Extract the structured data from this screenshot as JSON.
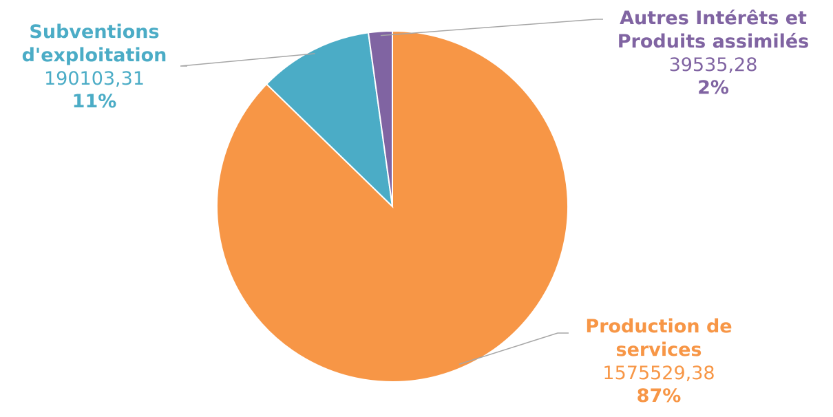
{
  "chart_data": {
    "type": "pie",
    "title": "",
    "slices": [
      {
        "label": "Production de services",
        "value_label": "1575529,38",
        "value": 1575529.38,
        "percent_label": "87%",
        "color": "#f79646"
      },
      {
        "label": "Subventions d'exploitation",
        "value_label": "190103,31",
        "value": 190103.31,
        "percent_label": "11%",
        "color": "#4bacc6"
      },
      {
        "label": "Autres Intérêts et Produits assimilés",
        "value_label": "39535,28",
        "value": 39535.28,
        "percent_label": "2%",
        "color": "#8064a2"
      }
    ],
    "start_angle": "12 o'clock",
    "direction": "clockwise",
    "legend": "none",
    "leader_line_color": "#a6a6a6"
  }
}
